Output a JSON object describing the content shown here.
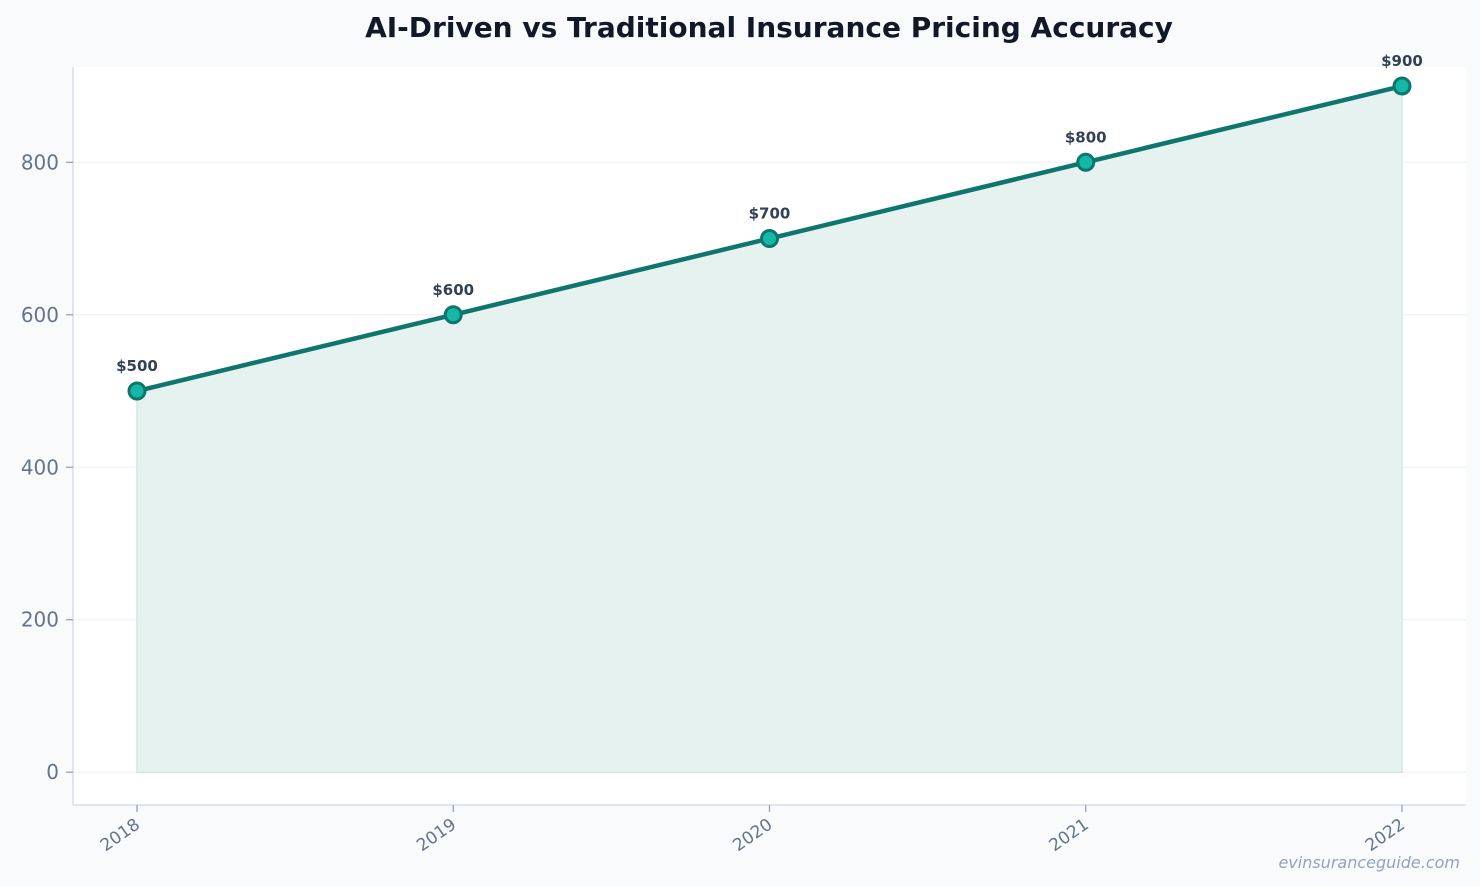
{
  "chart_data": {
    "type": "area",
    "title": "AI-Driven vs Traditional Insurance Pricing Accuracy",
    "categories": [
      "2018",
      "2019",
      "2020",
      "2021",
      "2022"
    ],
    "series": [
      {
        "values": [
          500,
          600,
          700,
          800,
          900
        ],
        "labels": [
          "$500",
          "$600",
          "$700",
          "$800",
          "$900"
        ]
      }
    ],
    "y_ticks": [
      "0",
      "200",
      "400",
      "600",
      "800"
    ],
    "ylim": [
      -43,
      925
    ],
    "grid": true,
    "legend": "none",
    "colors": {
      "line": "#0f766e",
      "marker_fill": "#14b8a6",
      "area_fill": "#e6f2ef",
      "grid": "#eef2f6",
      "axis": "#d7dee8",
      "plot_bg": "#ffffff"
    }
  },
  "watermark": "evinsuranceguide.com"
}
